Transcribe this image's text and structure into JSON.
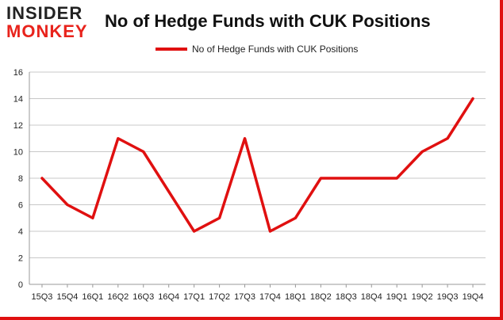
{
  "logo": {
    "line1": "INSIDER",
    "line2": "MONKEY"
  },
  "colors": {
    "series": "#e01010",
    "grid": "#c8c8c8",
    "border": "#e01010",
    "logo_accent": "#e8231c"
  },
  "chart_data": {
    "type": "line",
    "title": "No of Hedge Funds with CUK Positions",
    "xlabel": "",
    "ylabel": "",
    "categories": [
      "15Q3",
      "15Q4",
      "16Q1",
      "16Q2",
      "16Q3",
      "16Q4",
      "17Q1",
      "17Q2",
      "17Q3",
      "17Q4",
      "18Q1",
      "18Q2",
      "18Q3",
      "18Q4",
      "19Q1",
      "19Q2",
      "19Q3",
      "19Q4"
    ],
    "series": [
      {
        "name": "No of Hedge Funds with CUK Positions",
        "values": [
          8,
          6,
          5,
          11,
          10,
          7,
          4,
          5,
          11,
          4,
          5,
          8,
          8,
          8,
          8,
          10,
          11,
          14
        ]
      }
    ],
    "ylim": [
      0,
      16
    ],
    "yticks": [
      0,
      2,
      4,
      6,
      8,
      10,
      12,
      14,
      16
    ],
    "grid": true,
    "legend": "top-center"
  }
}
